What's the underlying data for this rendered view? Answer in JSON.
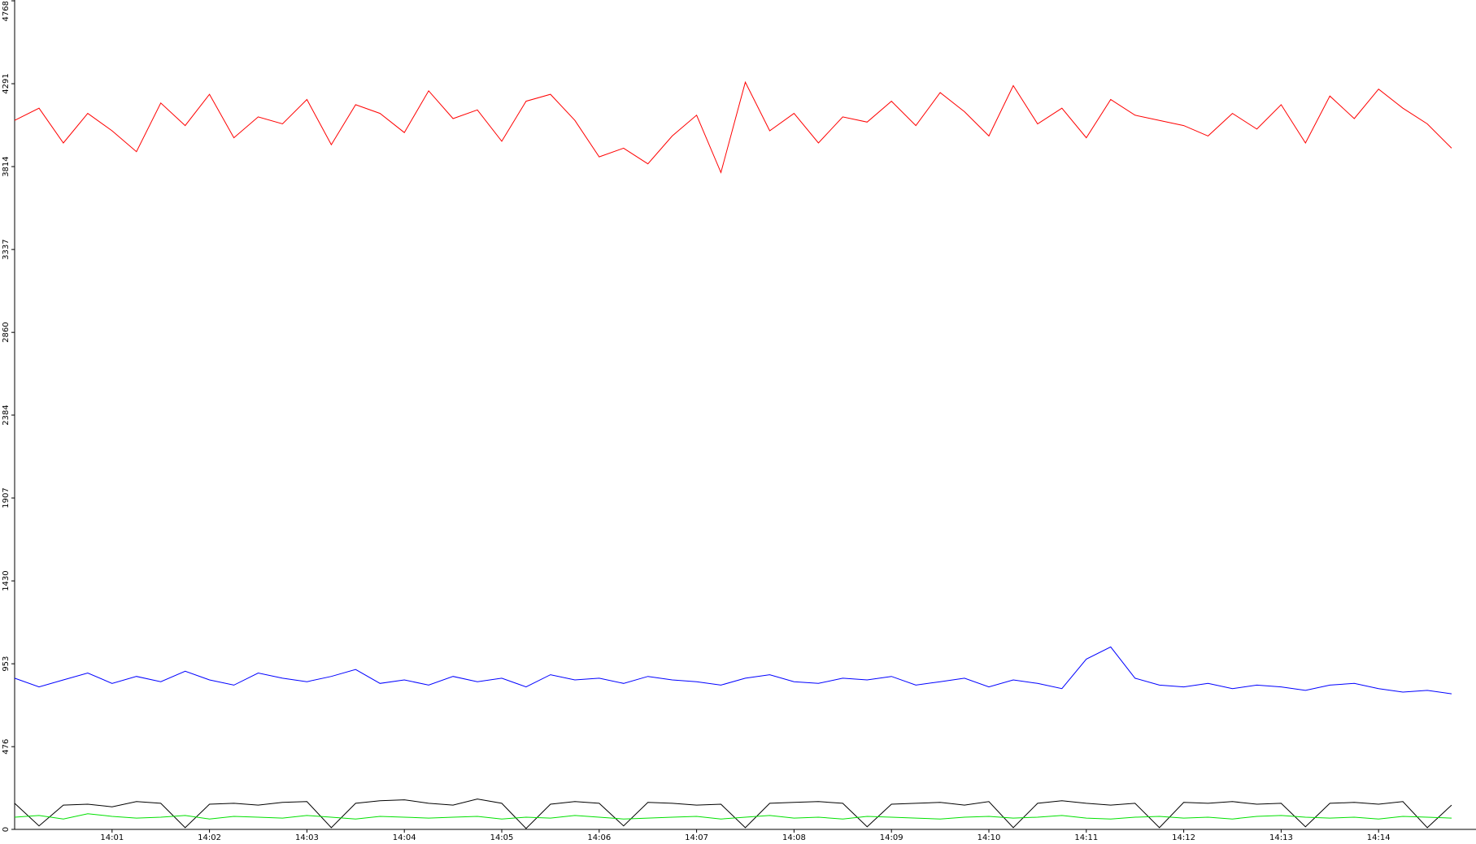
{
  "chart_data": {
    "type": "line",
    "categories": [
      null,
      null,
      null,
      null,
      "14:01",
      null,
      null,
      null,
      "14:02",
      null,
      null,
      null,
      "14:03",
      null,
      null,
      null,
      "14:04",
      null,
      null,
      null,
      "14:05",
      null,
      null,
      null,
      "14:06",
      null,
      null,
      null,
      "14:07",
      null,
      null,
      null,
      "14:08",
      null,
      null,
      null,
      "14:09",
      null,
      null,
      null,
      "14:10",
      null,
      null,
      null,
      "14:11",
      null,
      null,
      null,
      "14:12",
      null,
      null,
      null,
      "14:13",
      null,
      null,
      null,
      "14:14",
      null,
      null,
      null
    ],
    "series": [
      {
        "color": "#ff0000",
        "values": [
          4080,
          4150,
          3950,
          4120,
          4020,
          3900,
          4180,
          4050,
          4230,
          3980,
          4100,
          4060,
          4200,
          3940,
          4170,
          4120,
          4010,
          4250,
          4090,
          4140,
          3960,
          4190,
          4230,
          4080,
          3870,
          3920,
          3830,
          3990,
          4110,
          3780,
          4300,
          4020,
          4120,
          3950,
          4100,
          4070,
          4190,
          4050,
          4240,
          4130,
          3990,
          4280,
          4060,
          4150,
          3980,
          4200,
          4110,
          4080,
          4050,
          3990,
          4120,
          4030,
          4170,
          3950,
          4220,
          4090,
          4260,
          4150,
          4060,
          3920
        ]
      },
      {
        "color": "#0000ff",
        "values": [
          870,
          820,
          860,
          900,
          840,
          880,
          850,
          910,
          860,
          830,
          900,
          870,
          850,
          880,
          920,
          840,
          860,
          830,
          880,
          850,
          870,
          820,
          890,
          860,
          870,
          840,
          880,
          860,
          850,
          830,
          870,
          890,
          850,
          840,
          870,
          860,
          880,
          830,
          850,
          870,
          820,
          860,
          840,
          810,
          980,
          1050,
          870,
          830,
          820,
          840,
          810,
          830,
          820,
          800,
          830,
          840,
          810,
          790,
          800,
          780
        ]
      },
      {
        "color": "#000000",
        "values": [
          150,
          20,
          140,
          145,
          130,
          160,
          150,
          10,
          145,
          150,
          140,
          155,
          160,
          10,
          150,
          165,
          170,
          150,
          140,
          175,
          150,
          5,
          145,
          160,
          150,
          20,
          155,
          150,
          140,
          145,
          10,
          150,
          155,
          160,
          150,
          15,
          145,
          150,
          155,
          140,
          160,
          10,
          150,
          165,
          150,
          140,
          150,
          10,
          155,
          150,
          160,
          145,
          150,
          15,
          150,
          155,
          145,
          160,
          10,
          140
        ]
      },
      {
        "color": "#00e000",
        "values": [
          70,
          80,
          60,
          90,
          75,
          65,
          70,
          80,
          60,
          75,
          70,
          65,
          80,
          70,
          60,
          75,
          70,
          65,
          70,
          75,
          60,
          70,
          65,
          80,
          70,
          60,
          65,
          70,
          75,
          60,
          70,
          80,
          65,
          70,
          60,
          75,
          70,
          65,
          60,
          70,
          75,
          65,
          70,
          80,
          65,
          60,
          70,
          75,
          65,
          70,
          60,
          75,
          80,
          70,
          65,
          70,
          60,
          75,
          70,
          65
        ]
      }
    ],
    "ylim": [
      0,
      4768
    ],
    "yticks": [
      0,
      476,
      953,
      1430,
      1907,
      2384,
      2860,
      3337,
      3814,
      4291,
      4768
    ]
  }
}
